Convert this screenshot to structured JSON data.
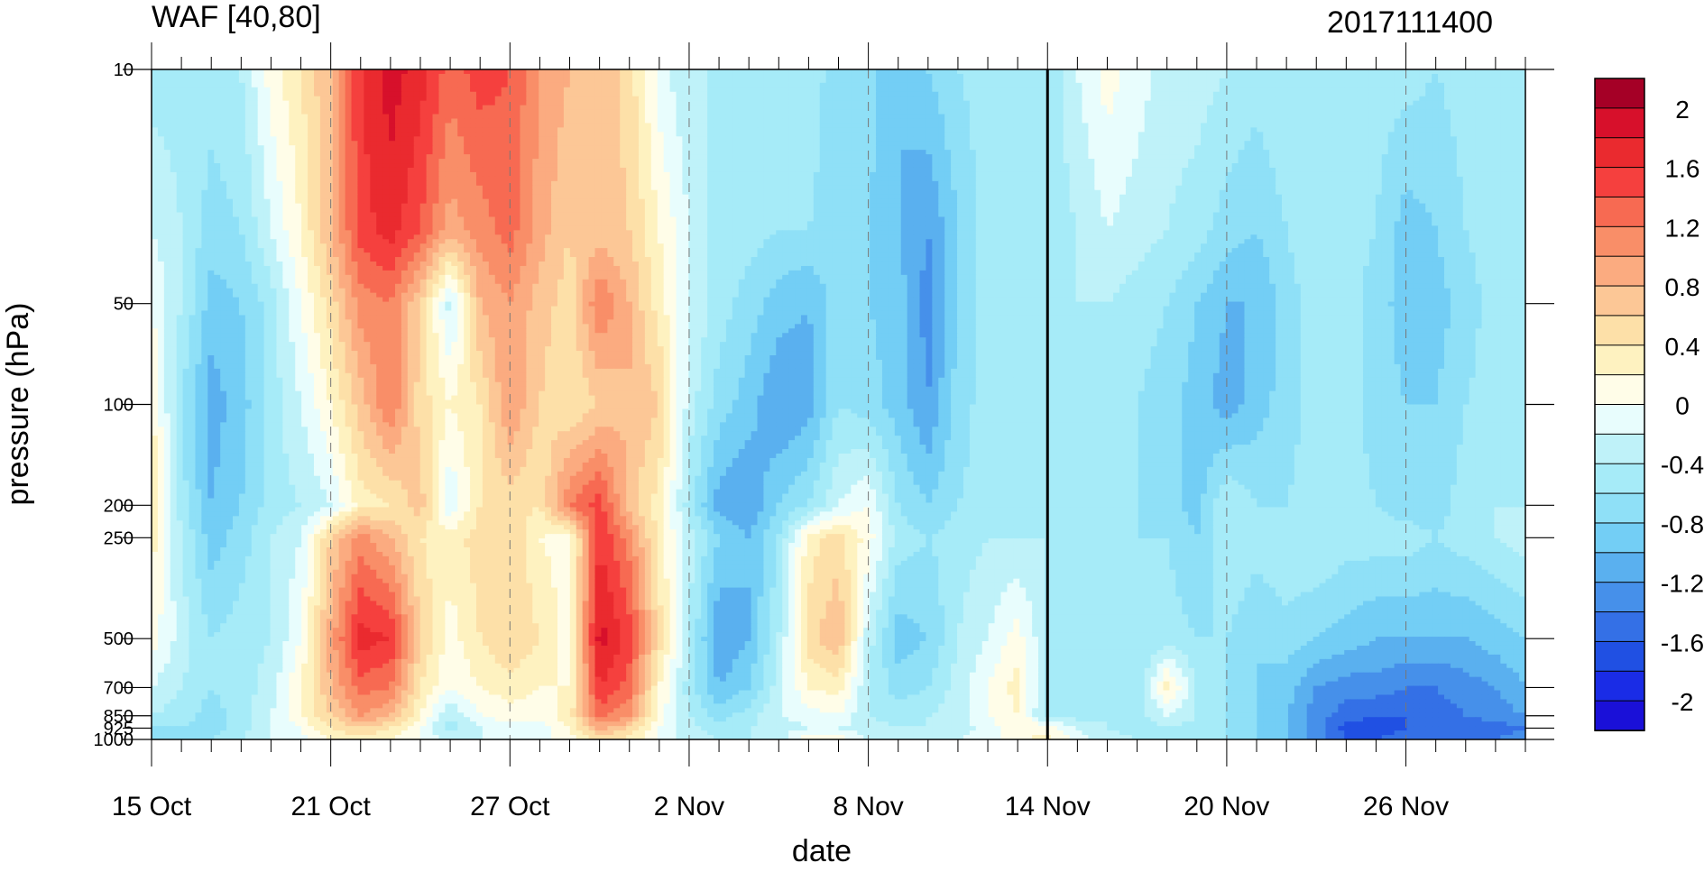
{
  "chart_data": {
    "type": "heatmap",
    "title": "WAF [40,80]",
    "subtitle": "2017111400",
    "xlabel": "date",
    "ylabel": "pressure (hPa)",
    "x_ticks": [
      "15 Oct",
      "21 Oct",
      "27 Oct",
      "2 Nov",
      "8 Nov",
      "14 Nov",
      "20 Nov",
      "26 Nov"
    ],
    "x_range": [
      "2017-10-15",
      "2017-11-30"
    ],
    "y_ticks": [
      10,
      50,
      100,
      200,
      250,
      500,
      700,
      850,
      925,
      1000
    ],
    "y_scale": "log",
    "y_reversed": true,
    "y_range": [
      10,
      1000
    ],
    "marker_date": "14 Nov",
    "colorbar": {
      "labels": [
        "2",
        "1.6",
        "1.2",
        "0.8",
        "0.4",
        "0",
        "-0.4",
        "-0.8",
        "-1.2",
        "-1.6",
        "-2"
      ],
      "levels": [
        2.2,
        2.0,
        1.8,
        1.6,
        1.4,
        1.2,
        1.0,
        0.8,
        0.6,
        0.4,
        0.2,
        0.0,
        -0.2,
        -0.4,
        -0.6,
        -0.8,
        -1.0,
        -1.2,
        -1.4,
        -1.6,
        -1.8,
        -2.0,
        -2.2
      ],
      "colors": [
        "#a50026",
        "#d7102b",
        "#ea2a2f",
        "#f5403e",
        "#f76a52",
        "#f98e68",
        "#fbab80",
        "#fcc796",
        "#fde0a8",
        "#fef2c0",
        "#fffde8",
        "#e8fdfd",
        "#bff2f9",
        "#a6ebf8",
        "#8fe0f7",
        "#73cef5",
        "#5ab0ef",
        "#4690ea",
        "#3470e6",
        "#2050e3",
        "#1a2ce6",
        "#1a10d8"
      ]
    },
    "days": [
      "15 Oct",
      "16 Oct",
      "17 Oct",
      "18 Oct",
      "19 Oct",
      "20 Oct",
      "21 Oct",
      "22 Oct",
      "23 Oct",
      "24 Oct",
      "25 Oct",
      "26 Oct",
      "27 Oct",
      "28 Oct",
      "29 Oct",
      "30 Oct",
      "31 Oct",
      "1 Nov",
      "2 Nov",
      "3 Nov",
      "4 Nov",
      "5 Nov",
      "6 Nov",
      "7 Nov",
      "8 Nov",
      "9 Nov",
      "10 Nov",
      "11 Nov",
      "12 Nov",
      "13 Nov",
      "14 Nov",
      "15 Nov",
      "16 Nov",
      "17 Nov",
      "18 Nov",
      "19 Nov",
      "20 Nov",
      "21 Nov",
      "22 Nov",
      "23 Nov",
      "24 Nov",
      "25 Nov",
      "26 Nov",
      "27 Nov",
      "28 Nov",
      "29 Nov",
      "30 Nov"
    ],
    "levels_hpa": [
      10,
      30,
      50,
      100,
      200,
      250,
      500,
      700,
      850,
      925,
      1000
    ],
    "values": [
      [
        -0.5,
        -0.5,
        -0.5,
        -0.4,
        0.1,
        0.4,
        0.8,
        1.6,
        1.9,
        1.7,
        1.3,
        1.5,
        1.4,
        1.0,
        0.8,
        0.8,
        0.5,
        -0.1,
        -0.4,
        -0.4,
        -0.4,
        -0.5,
        -0.5,
        -0.7,
        -0.7,
        -1.0,
        -0.8,
        -0.6,
        -0.5,
        -0.5,
        -0.6,
        -0.2,
        0.1,
        -0.1,
        -0.3,
        -0.3,
        -0.4,
        -0.5,
        -0.4,
        -0.4,
        -0.5,
        -0.5,
        -0.5,
        -0.6,
        -0.5,
        -0.4,
        -0.5
      ],
      [
        -0.2,
        -0.4,
        -0.7,
        -0.6,
        -0.2,
        0.2,
        0.8,
        1.5,
        1.7,
        1.4,
        0.9,
        1.1,
        1.3,
        0.9,
        0.6,
        0.7,
        0.6,
        0.2,
        -0.2,
        -0.5,
        -0.5,
        -0.6,
        -0.6,
        -0.7,
        -0.8,
        -1.0,
        -1.2,
        -0.8,
        -0.5,
        -0.4,
        -0.5,
        -0.4,
        -0.2,
        -0.3,
        -0.4,
        -0.5,
        -0.7,
        -0.8,
        -0.6,
        -0.4,
        -0.5,
        -0.6,
        -0.9,
        -0.8,
        -0.6,
        -0.5,
        -0.5
      ],
      [
        0.0,
        -0.4,
        -0.9,
        -0.8,
        -0.5,
        0.0,
        0.5,
        1.1,
        1.2,
        0.6,
        -0.3,
        0.8,
        1.0,
        0.7,
        0.5,
        1.2,
        0.8,
        0.3,
        -0.2,
        -0.5,
        -0.7,
        -0.9,
        -1.0,
        -0.7,
        -0.8,
        -0.9,
        -1.3,
        -0.8,
        -0.5,
        -0.4,
        -0.4,
        -0.4,
        -0.4,
        -0.5,
        -0.6,
        -0.8,
        -1.0,
        -1.0,
        -0.7,
        -0.5,
        -0.5,
        -0.7,
        -0.9,
        -0.9,
        -0.7,
        -0.5,
        -0.5
      ],
      [
        0.2,
        -0.6,
        -1.1,
        -0.9,
        -0.5,
        -0.2,
        0.2,
        0.7,
        1.2,
        0.5,
        0.2,
        0.4,
        1.0,
        0.6,
        0.4,
        0.6,
        0.8,
        0.6,
        -0.3,
        -0.7,
        -0.9,
        -1.2,
        -1.1,
        -0.6,
        -0.7,
        -0.9,
        -1.2,
        -0.7,
        -0.5,
        -0.4,
        -0.4,
        -0.5,
        -0.5,
        -0.6,
        -0.7,
        -0.9,
        -1.1,
        -0.9,
        -0.7,
        -0.5,
        -0.5,
        -0.7,
        -0.8,
        -0.8,
        -0.6,
        -0.5,
        -0.4
      ],
      [
        0.5,
        -0.5,
        -1.0,
        -0.8,
        -0.5,
        -0.4,
        -0.2,
        0.3,
        0.4,
        0.7,
        -0.2,
        0.4,
        0.5,
        0.4,
        1.2,
        1.5,
        0.7,
        0.3,
        -0.5,
        -1.1,
        -1.2,
        -0.8,
        -0.6,
        -0.2,
        0.0,
        -0.6,
        -0.8,
        -0.6,
        -0.5,
        -0.4,
        -0.4,
        -0.5,
        -0.5,
        -0.6,
        -0.7,
        -0.9,
        -0.4,
        -0.6,
        -0.6,
        -0.5,
        -0.5,
        -0.6,
        -0.7,
        -0.7,
        -0.5,
        -0.4,
        -0.4
      ],
      [
        0.3,
        -0.4,
        -0.9,
        -0.7,
        -0.4,
        -0.2,
        0.6,
        1.1,
        0.8,
        0.4,
        0.3,
        0.5,
        0.6,
        0.2,
        0.1,
        1.6,
        1.1,
        0.3,
        -0.3,
        -0.8,
        -1.0,
        -0.6,
        0.3,
        0.5,
        0.1,
        -0.5,
        -0.6,
        -0.5,
        -0.4,
        -0.4,
        -0.4,
        -0.5,
        -0.5,
        -0.6,
        -0.6,
        -0.8,
        -0.4,
        -0.5,
        -0.4,
        -0.4,
        -0.5,
        -0.5,
        -0.5,
        -0.6,
        -0.5,
        -0.4,
        -0.3
      ],
      [
        0.1,
        -0.3,
        -0.6,
        -0.5,
        -0.4,
        0.0,
        0.9,
        1.7,
        1.6,
        0.6,
        0.1,
        0.4,
        0.6,
        0.4,
        0.1,
        1.9,
        1.5,
        0.5,
        -0.4,
        -1.2,
        -1.0,
        -0.4,
        0.5,
        0.8,
        -0.3,
        -0.9,
        -0.8,
        -0.4,
        -0.2,
        0.1,
        -0.4,
        -0.5,
        -0.5,
        -0.6,
        -0.5,
        -0.6,
        -0.6,
        -0.8,
        -0.7,
        -0.8,
        -0.9,
        -1.0,
        -1.0,
        -1.0,
        -1.0,
        -0.9,
        -0.8
      ],
      [
        -0.2,
        -0.4,
        -0.6,
        -0.5,
        -0.3,
        0.2,
        0.8,
        1.3,
        1.2,
        0.4,
        0.0,
        0.2,
        0.3,
        0.2,
        0.2,
        1.6,
        1.3,
        0.2,
        -0.5,
        -1.0,
        -0.8,
        -0.3,
        0.2,
        0.3,
        -0.4,
        -0.7,
        -0.6,
        -0.3,
        0.0,
        0.3,
        -0.5,
        -0.5,
        -0.4,
        -0.6,
        0.3,
        -0.4,
        -0.6,
        -0.8,
        -0.9,
        -1.2,
        -1.3,
        -1.3,
        -1.4,
        -1.4,
        -1.3,
        -1.2,
        -1.0
      ],
      [
        -0.4,
        -0.5,
        -0.7,
        -0.5,
        -0.2,
        0.2,
        0.6,
        1.0,
        0.8,
        0.2,
        -0.4,
        0.0,
        0.1,
        0.1,
        0.3,
        1.3,
        1.0,
        0.1,
        -0.4,
        -0.7,
        -0.5,
        -0.2,
        -0.1,
        0.0,
        -0.4,
        -0.5,
        -0.4,
        -0.3,
        0.0,
        0.2,
        -0.5,
        -0.5,
        -0.4,
        -0.5,
        -0.2,
        -0.4,
        -0.6,
        -0.8,
        -1.0,
        -1.3,
        -1.5,
        -1.6,
        -1.6,
        -1.5,
        -1.4,
        -1.3,
        -1.2
      ],
      [
        -0.6,
        -0.6,
        -0.7,
        -0.5,
        -0.2,
        0.0,
        0.4,
        0.6,
        0.4,
        0.0,
        -0.5,
        -0.2,
        -0.1,
        -0.1,
        0.2,
        0.9,
        0.6,
        0.0,
        -0.3,
        -0.5,
        -0.4,
        -0.3,
        -0.2,
        -0.2,
        -0.3,
        -0.4,
        -0.4,
        -0.3,
        -0.1,
        0.2,
        0.1,
        -0.2,
        -0.4,
        -0.5,
        -0.4,
        -0.5,
        -0.6,
        -0.8,
        -1.0,
        -1.3,
        -1.7,
        -1.7,
        -1.6,
        -1.6,
        -1.6,
        -1.5,
        -1.4
      ],
      [
        -0.6,
        -0.6,
        -0.6,
        -0.4,
        -0.2,
        -0.1,
        0.2,
        0.3,
        0.2,
        0.0,
        -0.3,
        -0.2,
        -0.1,
        -0.1,
        0.1,
        0.5,
        0.3,
        0.0,
        -0.3,
        -0.4,
        -0.4,
        -0.3,
        0.2,
        0.2,
        -0.3,
        -0.3,
        -0.3,
        -0.2,
        -0.1,
        0.1,
        0.3,
        -0.1,
        -0.3,
        -0.4,
        -0.4,
        -0.5,
        -0.6,
        -0.8,
        -1.0,
        -1.3,
        -1.6,
        -1.6,
        -1.5,
        -1.5,
        -1.5,
        -1.4,
        -1.3
      ]
    ]
  }
}
